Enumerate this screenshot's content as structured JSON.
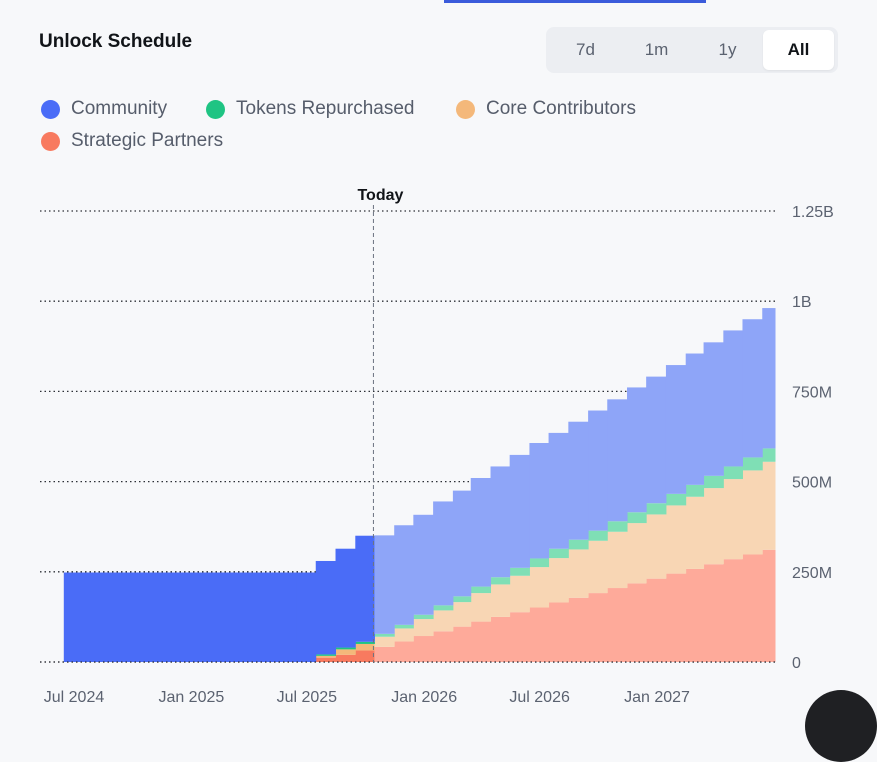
{
  "header": {
    "title": "Unlock Schedule"
  },
  "ranges": {
    "options": [
      "7d",
      "1m",
      "1y",
      "All"
    ],
    "active": "All"
  },
  "chart_data": {
    "type": "area",
    "stepped": true,
    "stacked": true,
    "x_ticks": [
      "Jul 2024",
      "Jan 2025",
      "Jul 2025",
      "Jan 2026",
      "Jul 2026",
      "Jan 2027"
    ],
    "y_ticks": [
      "0",
      "250M",
      "500M",
      "750M",
      "1B",
      "1.25B"
    ],
    "ylim": [
      0,
      1250000000
    ],
    "today_label": "Today",
    "today_date": "2025-10-15",
    "grid": true,
    "legend_position": "top-left",
    "series": [
      {
        "name": "Strategic Partners",
        "color": "#f87a5f",
        "color_future": "#feaa9a",
        "values": [
          [
            "2024-06-15",
            0
          ],
          [
            "2025-06-15",
            0
          ],
          [
            "2025-07-15",
            12000000
          ],
          [
            "2025-08-15",
            20000000
          ],
          [
            "2025-09-15",
            32000000
          ],
          [
            "2025-10-15",
            42000000
          ],
          [
            "2025-11-15",
            57000000
          ],
          [
            "2025-12-15",
            72000000
          ],
          [
            "2026-01-15",
            85000000
          ],
          [
            "2026-02-15",
            98000000
          ],
          [
            "2026-03-15",
            112000000
          ],
          [
            "2026-04-15",
            125000000
          ],
          [
            "2026-05-15",
            138000000
          ],
          [
            "2026-06-15",
            151000000
          ],
          [
            "2026-07-15",
            165000000
          ],
          [
            "2026-08-15",
            178000000
          ],
          [
            "2026-09-15",
            191000000
          ],
          [
            "2026-10-15",
            205000000
          ],
          [
            "2026-11-15",
            218000000
          ],
          [
            "2026-12-15",
            231000000
          ],
          [
            "2027-01-15",
            245000000
          ],
          [
            "2027-02-15",
            258000000
          ],
          [
            "2027-03-15",
            271000000
          ],
          [
            "2027-04-15",
            285000000
          ],
          [
            "2027-05-15",
            298000000
          ],
          [
            "2027-06-15",
            311000000
          ],
          [
            "2027-07-15",
            325000000
          ]
        ]
      },
      {
        "name": "Core Contributors",
        "color": "#f4b87a",
        "color_future": "#f8d6b4",
        "values": [
          [
            "2024-06-15",
            0
          ],
          [
            "2025-06-15",
            0
          ],
          [
            "2025-07-15",
            5000000
          ],
          [
            "2025-08-15",
            15000000
          ],
          [
            "2025-09-15",
            18000000
          ],
          [
            "2025-10-15",
            28000000
          ],
          [
            "2025-11-15",
            36000000
          ],
          [
            "2025-12-15",
            47000000
          ],
          [
            "2026-01-15",
            58000000
          ],
          [
            "2026-02-15",
            68000000
          ],
          [
            "2026-03-15",
            79000000
          ],
          [
            "2026-04-15",
            90000000
          ],
          [
            "2026-05-15",
            101000000
          ],
          [
            "2026-06-15",
            112000000
          ],
          [
            "2026-07-15",
            123000000
          ],
          [
            "2026-08-15",
            134000000
          ],
          [
            "2026-09-15",
            145000000
          ],
          [
            "2026-10-15",
            156000000
          ],
          [
            "2026-11-15",
            167000000
          ],
          [
            "2026-12-15",
            178000000
          ],
          [
            "2027-01-15",
            189000000
          ],
          [
            "2027-02-15",
            200000000
          ],
          [
            "2027-03-15",
            211000000
          ],
          [
            "2027-04-15",
            222000000
          ],
          [
            "2027-05-15",
            233000000
          ],
          [
            "2027-06-15",
            244000000
          ],
          [
            "2027-07-15",
            255000000
          ]
        ]
      },
      {
        "name": "Tokens Repurchased",
        "color": "#1fc483",
        "color_future": "#7fdfb5",
        "values": [
          [
            "2024-06-15",
            0
          ],
          [
            "2025-06-15",
            0
          ],
          [
            "2025-07-15",
            4000000
          ],
          [
            "2025-08-15",
            5000000
          ],
          [
            "2025-09-15",
            6000000
          ],
          [
            "2025-10-15",
            8000000
          ],
          [
            "2025-11-15",
            10000000
          ],
          [
            "2025-12-15",
            12000000
          ],
          [
            "2026-01-15",
            14000000
          ],
          [
            "2026-02-15",
            16000000
          ],
          [
            "2026-03-15",
            18000000
          ],
          [
            "2026-04-15",
            20000000
          ],
          [
            "2026-05-15",
            22000000
          ],
          [
            "2026-06-15",
            24000000
          ],
          [
            "2026-07-15",
            26000000
          ],
          [
            "2026-08-15",
            27000000
          ],
          [
            "2026-09-15",
            28000000
          ],
          [
            "2026-10-15",
            29000000
          ],
          [
            "2026-11-15",
            30000000
          ],
          [
            "2026-12-15",
            31000000
          ],
          [
            "2027-01-15",
            32000000
          ],
          [
            "2027-02-15",
            33000000
          ],
          [
            "2027-03-15",
            34000000
          ],
          [
            "2027-04-15",
            35000000
          ],
          [
            "2027-05-15",
            36000000
          ],
          [
            "2027-06-15",
            37000000
          ],
          [
            "2027-07-15",
            38000000
          ]
        ]
      },
      {
        "name": "Community",
        "color": "#4a6cf7",
        "color_future": "#8ea5f8",
        "values": [
          [
            "2024-06-15",
            248000000
          ],
          [
            "2025-06-15",
            248000000
          ],
          [
            "2025-07-15",
            259000000
          ],
          [
            "2025-08-15",
            274000000
          ],
          [
            "2025-09-15",
            294000000
          ],
          [
            "2025-10-15",
            273000000
          ],
          [
            "2025-11-15",
            276000000
          ],
          [
            "2025-12-15",
            277000000
          ],
          [
            "2026-01-15",
            288000000
          ],
          [
            "2026-02-15",
            293000000
          ],
          [
            "2026-03-15",
            301000000
          ],
          [
            "2026-04-15",
            307000000
          ],
          [
            "2026-05-15",
            313000000
          ],
          [
            "2026-06-15",
            320000000
          ],
          [
            "2026-07-15",
            321000000
          ],
          [
            "2026-08-15",
            327000000
          ],
          [
            "2026-09-15",
            333000000
          ],
          [
            "2026-10-15",
            338000000
          ],
          [
            "2026-11-15",
            346000000
          ],
          [
            "2026-12-15",
            351000000
          ],
          [
            "2027-01-15",
            357000000
          ],
          [
            "2027-02-15",
            364000000
          ],
          [
            "2027-03-15",
            370000000
          ],
          [
            "2027-04-15",
            377000000
          ],
          [
            "2027-05-15",
            383000000
          ],
          [
            "2027-06-15",
            389000000
          ],
          [
            "2027-07-15",
            382000000
          ]
        ]
      }
    ],
    "end_date": "2027-08-15",
    "start_date": "2024-06-15"
  },
  "legend_order": [
    "Community",
    "Tokens Repurchased",
    "Core Contributors",
    "Strategic Partners"
  ]
}
